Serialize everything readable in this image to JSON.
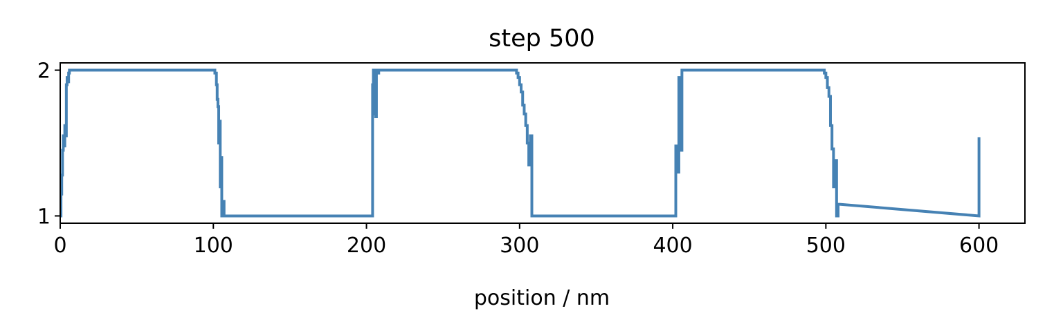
{
  "chart_data": {
    "type": "line",
    "title": "step 500",
    "xlabel": "position / nm",
    "ylabel": "",
    "xlim": [
      0,
      630
    ],
    "ylim": [
      0.95,
      2.05
    ],
    "xticks": [
      0,
      100,
      200,
      300,
      400,
      500,
      600
    ],
    "xtick_labels": [
      "0",
      "100",
      "200",
      "300",
      "400",
      "500",
      "600"
    ],
    "yticks": [
      1,
      2
    ],
    "ytick_labels": [
      "1",
      "2"
    ],
    "grid": false,
    "legend": "none",
    "colors": {
      "line": "#4682b4",
      "axes": "#000000",
      "background": "#ffffff"
    },
    "series": [
      {
        "x": [
          0,
          0.5,
          0.5,
          1.0,
          1.0,
          1.5,
          1.5,
          2.0,
          2.0,
          2.5,
          2.5,
          3.0,
          3.0,
          3.5,
          3.5,
          4.0,
          4.0,
          4.5,
          4.5,
          5.0,
          5.0,
          5.5,
          5.5,
          6.0,
          6.0,
          7.0,
          7.0,
          100,
          101,
          101,
          102,
          102,
          102.5,
          102.5,
          103,
          103,
          103.5,
          103.5,
          104,
          104,
          104.5,
          104.5,
          105,
          105,
          105.5,
          105.5,
          106,
          106,
          107,
          107,
          204,
          204,
          204.5,
          204.5,
          205,
          205,
          205.5,
          205.5,
          206,
          206,
          206.5,
          206.5,
          207,
          207,
          208,
          208,
          296,
          298,
          298,
          299,
          299,
          300,
          300,
          301,
          301,
          302,
          302,
          303,
          303,
          304,
          304,
          305,
          305,
          306,
          306,
          307,
          307,
          308,
          308,
          309,
          402,
          402,
          403,
          403,
          404,
          404,
          405,
          405,
          406,
          406,
          497,
          499,
          499,
          500,
          500,
          501,
          501,
          502,
          502,
          503,
          503,
          504,
          504,
          505,
          505,
          506,
          506,
          507,
          507,
          508,
          508,
          509,
          600,
          600
        ],
        "y": [
          1.0,
          1.0,
          1.15,
          1.15,
          1.28,
          1.28,
          1.45,
          1.45,
          1.55,
          1.55,
          1.48,
          1.48,
          1.62,
          1.62,
          1.55,
          1.55,
          1.9,
          1.9,
          1.95,
          1.95,
          1.92,
          1.92,
          1.98,
          1.98,
          2.0,
          2.0,
          2.0,
          2.0,
          2.0,
          1.98,
          1.98,
          1.9,
          1.9,
          1.8,
          1.8,
          1.75,
          1.75,
          1.5,
          1.5,
          1.65,
          1.65,
          1.2,
          1.2,
          1.4,
          1.4,
          1.0,
          1.0,
          1.1,
          1.1,
          1.0,
          1.0,
          1.9,
          1.9,
          2.0,
          2.0,
          1.7,
          1.7,
          1.95,
          1.95,
          1.68,
          1.68,
          2.0,
          2.0,
          1.98,
          1.98,
          2.0,
          2.0,
          2.0,
          1.98,
          1.98,
          1.95,
          1.95,
          1.9,
          1.9,
          1.85,
          1.85,
          1.76,
          1.76,
          1.7,
          1.7,
          1.62,
          1.62,
          1.5,
          1.5,
          1.35,
          1.35,
          1.55,
          1.55,
          1.0,
          1.0,
          1.0,
          1.48,
          1.48,
          1.3,
          1.3,
          1.95,
          1.95,
          1.45,
          1.45,
          2.0,
          2.0,
          2.0,
          1.98,
          1.98,
          1.95,
          1.95,
          1.88,
          1.88,
          1.82,
          1.82,
          1.62,
          1.62,
          1.46,
          1.46,
          1.2,
          1.2,
          1.38,
          1.38,
          1.0,
          1.0,
          1.08,
          1.08,
          1.0,
          1.54
        ]
      }
    ]
  }
}
